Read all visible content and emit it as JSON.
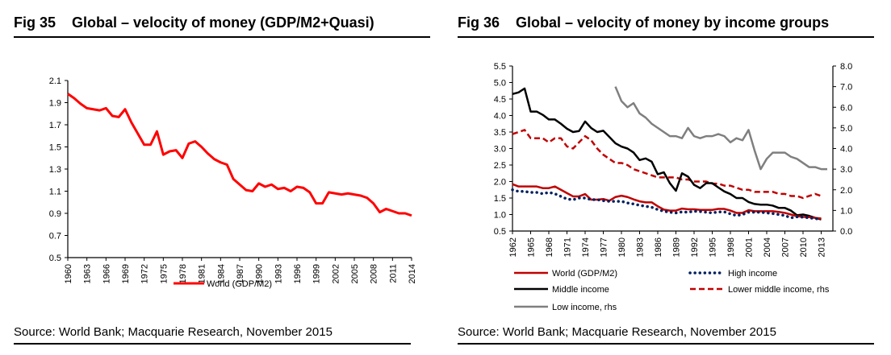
{
  "chart_data": [
    {
      "type": "line",
      "figure_label": "Fig 35",
      "title": "Global – velocity of money (GDP/M2+Quasi)",
      "xlabel": "",
      "ylabel": "",
      "ylim": [
        0.5,
        2.1
      ],
      "yticks": [
        "0.5",
        "0.7",
        "0.9",
        "1.1",
        "1.3",
        "1.5",
        "1.7",
        "1.9",
        "2.1"
      ],
      "xticks": [
        "1960",
        "1963",
        "1966",
        "1969",
        "1972",
        "1975",
        "1978",
        "1981",
        "1984",
        "1987",
        "1990",
        "1993",
        "1996",
        "1999",
        "2002",
        "2005",
        "2008",
        "2011",
        "2014"
      ],
      "x_range": [
        1960,
        2014
      ],
      "grid": false,
      "legend_placement": "bottom",
      "series": [
        {
          "name": "World (GDP/M2)",
          "color": "#ff0000",
          "style": "solid",
          "x_start": 1960,
          "values": [
            1.98,
            1.94,
            1.89,
            1.85,
            1.84,
            1.83,
            1.85,
            1.78,
            1.77,
            1.84,
            1.72,
            1.62,
            1.52,
            1.52,
            1.64,
            1.43,
            1.46,
            1.47,
            1.4,
            1.53,
            1.55,
            1.5,
            1.44,
            1.39,
            1.36,
            1.34,
            1.21,
            1.16,
            1.11,
            1.1,
            1.17,
            1.14,
            1.16,
            1.12,
            1.13,
            1.1,
            1.14,
            1.13,
            1.09,
            0.99,
            0.99,
            1.09,
            1.08,
            1.07,
            1.08,
            1.07,
            1.06,
            1.04,
            0.99,
            0.91,
            0.94,
            0.92,
            0.9,
            0.9,
            0.88
          ]
        }
      ],
      "source": "Source: World Bank; Macquarie Research, November 2015"
    },
    {
      "type": "line",
      "figure_label": "Fig 36",
      "title": "Global – velocity of money by income groups",
      "xlabel": "",
      "ylabel": "",
      "ylim": [
        0.5,
        5.5
      ],
      "y2lim": [
        0.0,
        8.0
      ],
      "yticks": [
        "0.5",
        "1.0",
        "1.5",
        "2.0",
        "2.5",
        "3.0",
        "3.5",
        "4.0",
        "4.5",
        "5.0",
        "5.5"
      ],
      "y2ticks": [
        "0.0",
        "1.0",
        "2.0",
        "3.0",
        "4.0",
        "5.0",
        "6.0",
        "7.0",
        "8.0"
      ],
      "xticks": [
        "1962",
        "1965",
        "1968",
        "1971",
        "1974",
        "1977",
        "1980",
        "1983",
        "1986",
        "1989",
        "1992",
        "1995",
        "1998",
        "2001",
        "2004",
        "2007",
        "2010",
        "2013"
      ],
      "x_range": [
        1962,
        2014
      ],
      "grid": false,
      "legend_placement": "bottom",
      "series": [
        {
          "name": "World (GDP/M2)",
          "color": "#c00000",
          "style": "solid",
          "axis": "left",
          "x_start": 1962,
          "values": [
            1.92,
            1.85,
            1.85,
            1.85,
            1.85,
            1.8,
            1.8,
            1.85,
            1.75,
            1.65,
            1.55,
            1.55,
            1.62,
            1.45,
            1.45,
            1.47,
            1.42,
            1.53,
            1.57,
            1.53,
            1.46,
            1.4,
            1.37,
            1.37,
            1.25,
            1.15,
            1.12,
            1.12,
            1.18,
            1.16,
            1.16,
            1.14,
            1.14,
            1.14,
            1.17,
            1.17,
            1.12,
            1.05,
            1.05,
            1.13,
            1.1,
            1.1,
            1.1,
            1.1,
            1.08,
            1.05,
            1.0,
            0.95,
            0.93,
            0.92,
            0.9,
            0.88
          ]
        },
        {
          "name": "High income",
          "color": "#002060",
          "style": "dotted",
          "axis": "left",
          "x_start": 1962,
          "values": [
            1.75,
            1.7,
            1.7,
            1.67,
            1.67,
            1.63,
            1.67,
            1.63,
            1.55,
            1.47,
            1.45,
            1.5,
            1.5,
            1.45,
            1.45,
            1.42,
            1.4,
            1.4,
            1.4,
            1.35,
            1.32,
            1.28,
            1.25,
            1.22,
            1.15,
            1.1,
            1.07,
            1.05,
            1.08,
            1.07,
            1.1,
            1.09,
            1.07,
            1.05,
            1.08,
            1.08,
            1.02,
            0.97,
            1.0,
            1.07,
            1.07,
            1.07,
            1.05,
            1.03,
            1.0,
            0.97,
            0.9,
            0.93,
            0.92,
            0.9,
            0.88,
            0.85
          ]
        },
        {
          "name": "Middle income",
          "color": "#000000",
          "style": "solid",
          "axis": "left",
          "x_start": 1962,
          "values": [
            4.65,
            4.7,
            4.82,
            4.12,
            4.12,
            4.02,
            3.88,
            3.88,
            3.75,
            3.6,
            3.5,
            3.53,
            3.82,
            3.62,
            3.5,
            3.54,
            3.35,
            3.16,
            3.06,
            3.0,
            2.88,
            2.65,
            2.7,
            2.6,
            2.22,
            2.28,
            1.95,
            1.72,
            2.25,
            2.15,
            1.9,
            1.8,
            1.95,
            1.95,
            1.82,
            1.7,
            1.62,
            1.5,
            1.5,
            1.38,
            1.32,
            1.3,
            1.3,
            1.27,
            1.2,
            1.2,
            1.12,
            0.98,
            1.0,
            0.96,
            0.9,
            0.85
          ]
        },
        {
          "name": "Lower middle income, rhs",
          "color": "#c00000",
          "style": "dashed",
          "axis": "right",
          "x_start": 1962,
          "values": [
            4.7,
            4.8,
            4.9,
            4.5,
            4.5,
            4.5,
            4.3,
            4.5,
            4.5,
            4.1,
            4.0,
            4.3,
            4.6,
            4.4,
            4.0,
            3.7,
            3.5,
            3.3,
            3.3,
            3.2,
            3.0,
            2.9,
            2.8,
            2.7,
            2.6,
            2.6,
            2.6,
            2.6,
            2.5,
            2.5,
            2.4,
            2.4,
            2.4,
            2.3,
            2.3,
            2.2,
            2.2,
            2.1,
            2.0,
            2.0,
            1.9,
            1.9,
            1.9,
            1.9,
            1.8,
            1.8,
            1.7,
            1.7,
            1.6,
            1.7,
            1.8,
            1.7
          ]
        },
        {
          "name": "Low income, rhs",
          "color": "#7f7f7f",
          "style": "solid",
          "axis": "right",
          "x_start": 1979,
          "values": [
            7.0,
            6.3,
            6.0,
            6.2,
            5.7,
            5.5,
            5.2,
            5.0,
            4.8,
            4.6,
            4.6,
            4.5,
            5.0,
            4.6,
            4.5,
            4.6,
            4.6,
            4.7,
            4.6,
            4.3,
            4.5,
            4.4,
            4.9,
            3.9,
            3.0,
            3.5,
            3.8,
            3.8,
            3.8,
            3.6,
            3.5,
            3.3,
            3.1,
            3.1,
            3.0,
            3.0
          ]
        }
      ],
      "source": "Source: World Bank; Macquarie Research, November 2015"
    }
  ]
}
